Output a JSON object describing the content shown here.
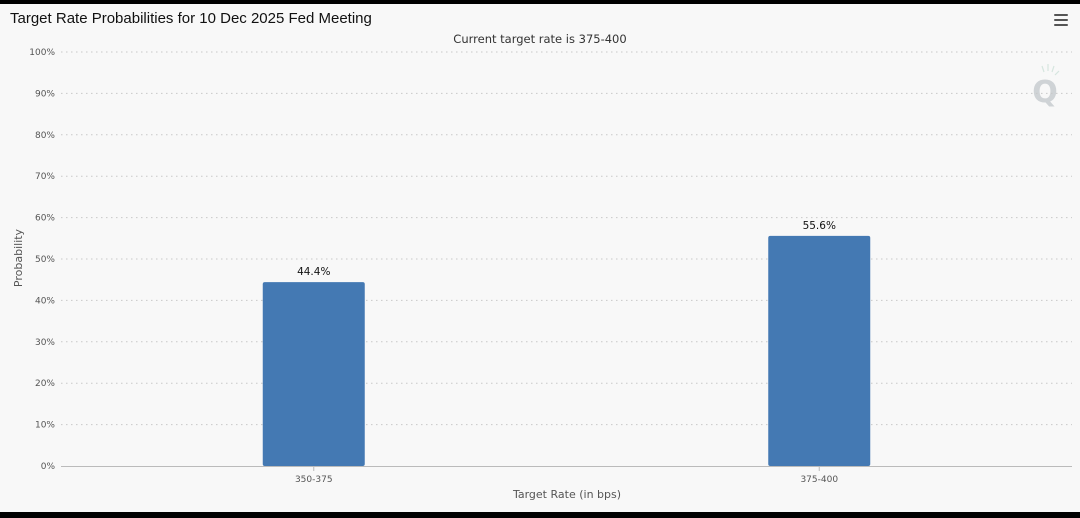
{
  "header": {
    "title": "Target Rate Probabilities for 10 Dec 2025 Fed Meeting",
    "menu_icon": "hamburger-menu-icon"
  },
  "watermark": {
    "icon": "q-logo-icon",
    "letter": "Q"
  },
  "chart_data": {
    "type": "bar",
    "subtitle": "Current target rate is 375-400",
    "categories": [
      "350-375",
      "375-400"
    ],
    "values": [
      44.4,
      55.6
    ],
    "data_labels": [
      "44.4%",
      "55.6%"
    ],
    "xlabel": "Target Rate (in bps)",
    "ylabel": "Probability",
    "ylim": [
      0,
      100
    ],
    "yticks": [
      "0%",
      "10%",
      "20%",
      "30%",
      "40%",
      "50%",
      "60%",
      "70%",
      "80%",
      "90%",
      "100%"
    ],
    "grid": true,
    "bar_color": "#4479b3"
  }
}
